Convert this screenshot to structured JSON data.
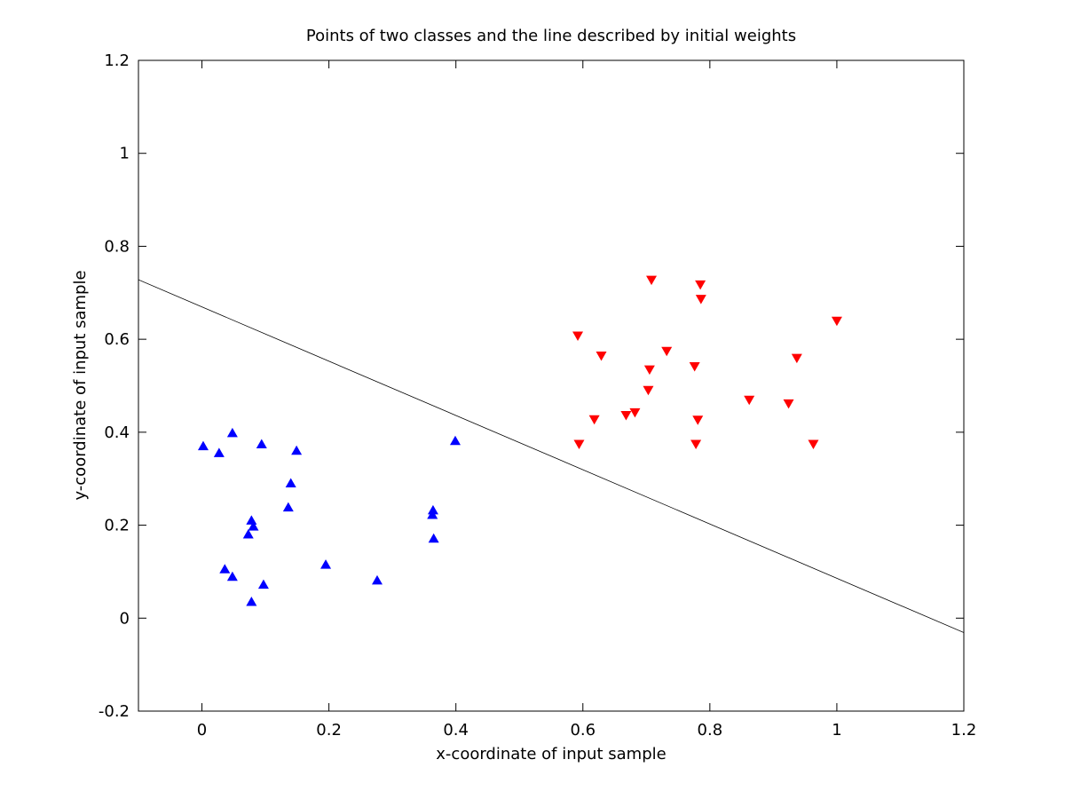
{
  "chart_data": {
    "type": "scatter",
    "title": "Points of two classes and the line described by initial weights",
    "xlabel": "x-coordinate of input sample",
    "ylabel": "y-coordinate of input sample",
    "xlim": [
      -0.1,
      1.2
    ],
    "ylim": [
      -0.2,
      1.2
    ],
    "xticks": [
      "0",
      "0.2",
      "0.4",
      "0.6",
      "0.8",
      "1",
      "1.2"
    ],
    "yticks": [
      "-0.2",
      "0",
      "0.2",
      "0.4",
      "0.6",
      "0.8",
      "1",
      "1.2"
    ],
    "grid": false,
    "legend": "none",
    "series": [
      {
        "marker": "triangle-up",
        "color": "#0000ff",
        "points": [
          [
            0.002,
            0.37
          ],
          [
            0.027,
            0.355
          ],
          [
            0.048,
            0.398
          ],
          [
            0.094,
            0.374
          ],
          [
            0.149,
            0.36
          ],
          [
            0.14,
            0.29
          ],
          [
            0.136,
            0.238
          ],
          [
            0.078,
            0.21
          ],
          [
            0.081,
            0.197
          ],
          [
            0.073,
            0.18
          ],
          [
            0.036,
            0.105
          ],
          [
            0.048,
            0.089
          ],
          [
            0.097,
            0.072
          ],
          [
            0.078,
            0.035
          ],
          [
            0.195,
            0.115
          ],
          [
            0.276,
            0.081
          ],
          [
            0.364,
            0.232
          ],
          [
            0.363,
            0.222
          ],
          [
            0.365,
            0.171
          ],
          [
            0.399,
            0.381
          ]
        ]
      },
      {
        "marker": "triangle-down",
        "color": "#ff0000",
        "points": [
          [
            0.592,
            0.608
          ],
          [
            0.594,
            0.375
          ],
          [
            0.618,
            0.428
          ],
          [
            0.629,
            0.565
          ],
          [
            0.668,
            0.437
          ],
          [
            0.682,
            0.443
          ],
          [
            0.703,
            0.491
          ],
          [
            0.705,
            0.535
          ],
          [
            0.708,
            0.728
          ],
          [
            0.732,
            0.575
          ],
          [
            0.776,
            0.542
          ],
          [
            0.778,
            0.375
          ],
          [
            0.781,
            0.427
          ],
          [
            0.785,
            0.718
          ],
          [
            0.786,
            0.687
          ],
          [
            0.862,
            0.47
          ],
          [
            0.924,
            0.462
          ],
          [
            0.937,
            0.56
          ],
          [
            0.963,
            0.375
          ],
          [
            1.0,
            0.64
          ]
        ]
      }
    ],
    "lines": [
      {
        "color": "#000000",
        "points": [
          [
            -0.1,
            0.728
          ],
          [
            1.2,
            -0.031
          ]
        ]
      }
    ]
  }
}
